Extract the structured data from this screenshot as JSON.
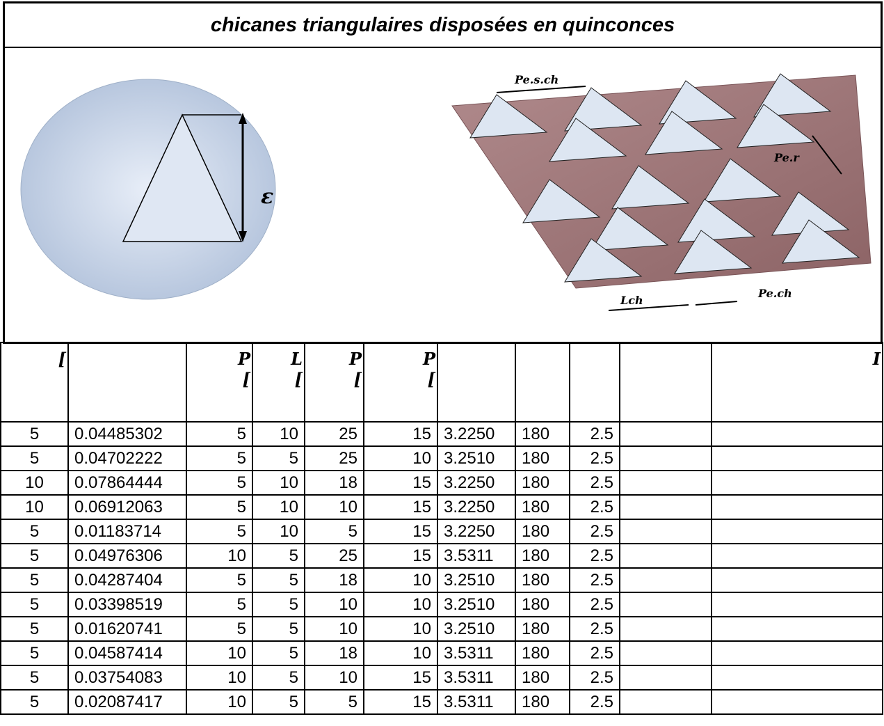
{
  "title": "chicanes triangulaires disposées en quinconces",
  "figure": {
    "epsilon": "ε",
    "pitch_span": "Pe.s.ch",
    "pitch_row": "Pe.r",
    "length": "Lch",
    "pitch": "Pe.ch"
  },
  "table": {
    "header": [
      [
        "["
      ],
      [],
      [
        "P",
        "["
      ],
      [
        "L",
        "["
      ],
      [
        "P",
        "["
      ],
      [
        "P",
        "["
      ],
      [],
      [],
      [],
      [],
      [
        "I"
      ]
    ],
    "rows": [
      [
        "5",
        "0.04485302",
        "5",
        "10",
        "25",
        "15",
        "3.2250",
        "180",
        "2.5"
      ],
      [
        "5",
        "0.04702222",
        "5",
        "5",
        "25",
        "10",
        "3.2510",
        "180",
        "2.5"
      ],
      [
        "10",
        "0.07864444",
        "5",
        "10",
        "18",
        "15",
        "3.2250",
        "180",
        "2.5"
      ],
      [
        "10",
        "0.06912063",
        "5",
        "10",
        "10",
        "15",
        "3.2250",
        "180",
        "2.5"
      ],
      [
        "5",
        "0.01183714",
        "5",
        "10",
        "5",
        "15",
        "3.2250",
        "180",
        "2.5"
      ],
      [
        "5",
        "0.04976306",
        "10",
        "5",
        "25",
        "15",
        "3.5311",
        "180",
        "2.5"
      ],
      [
        "5",
        "0.04287404",
        "5",
        "5",
        "18",
        "10",
        "3.2510",
        "180",
        "2.5"
      ],
      [
        "5",
        "0.03398519",
        "5",
        "5",
        "10",
        "10",
        "3.2510",
        "180",
        "2.5"
      ],
      [
        "5",
        "0.01620741",
        "5",
        "5",
        "10",
        "10",
        "3.2510",
        "180",
        "2.5"
      ],
      [
        "5",
        "0.04587414",
        "10",
        "5",
        "18",
        "10",
        "3.5311",
        "180",
        "2.5"
      ],
      [
        "5",
        "0.03754083",
        "10",
        "5",
        "10",
        "15",
        "3.5311",
        "180",
        "2.5"
      ],
      [
        "5",
        "0.02087417",
        "10",
        "5",
        "5",
        "15",
        "3.5311",
        "180",
        "2.5"
      ]
    ]
  }
}
